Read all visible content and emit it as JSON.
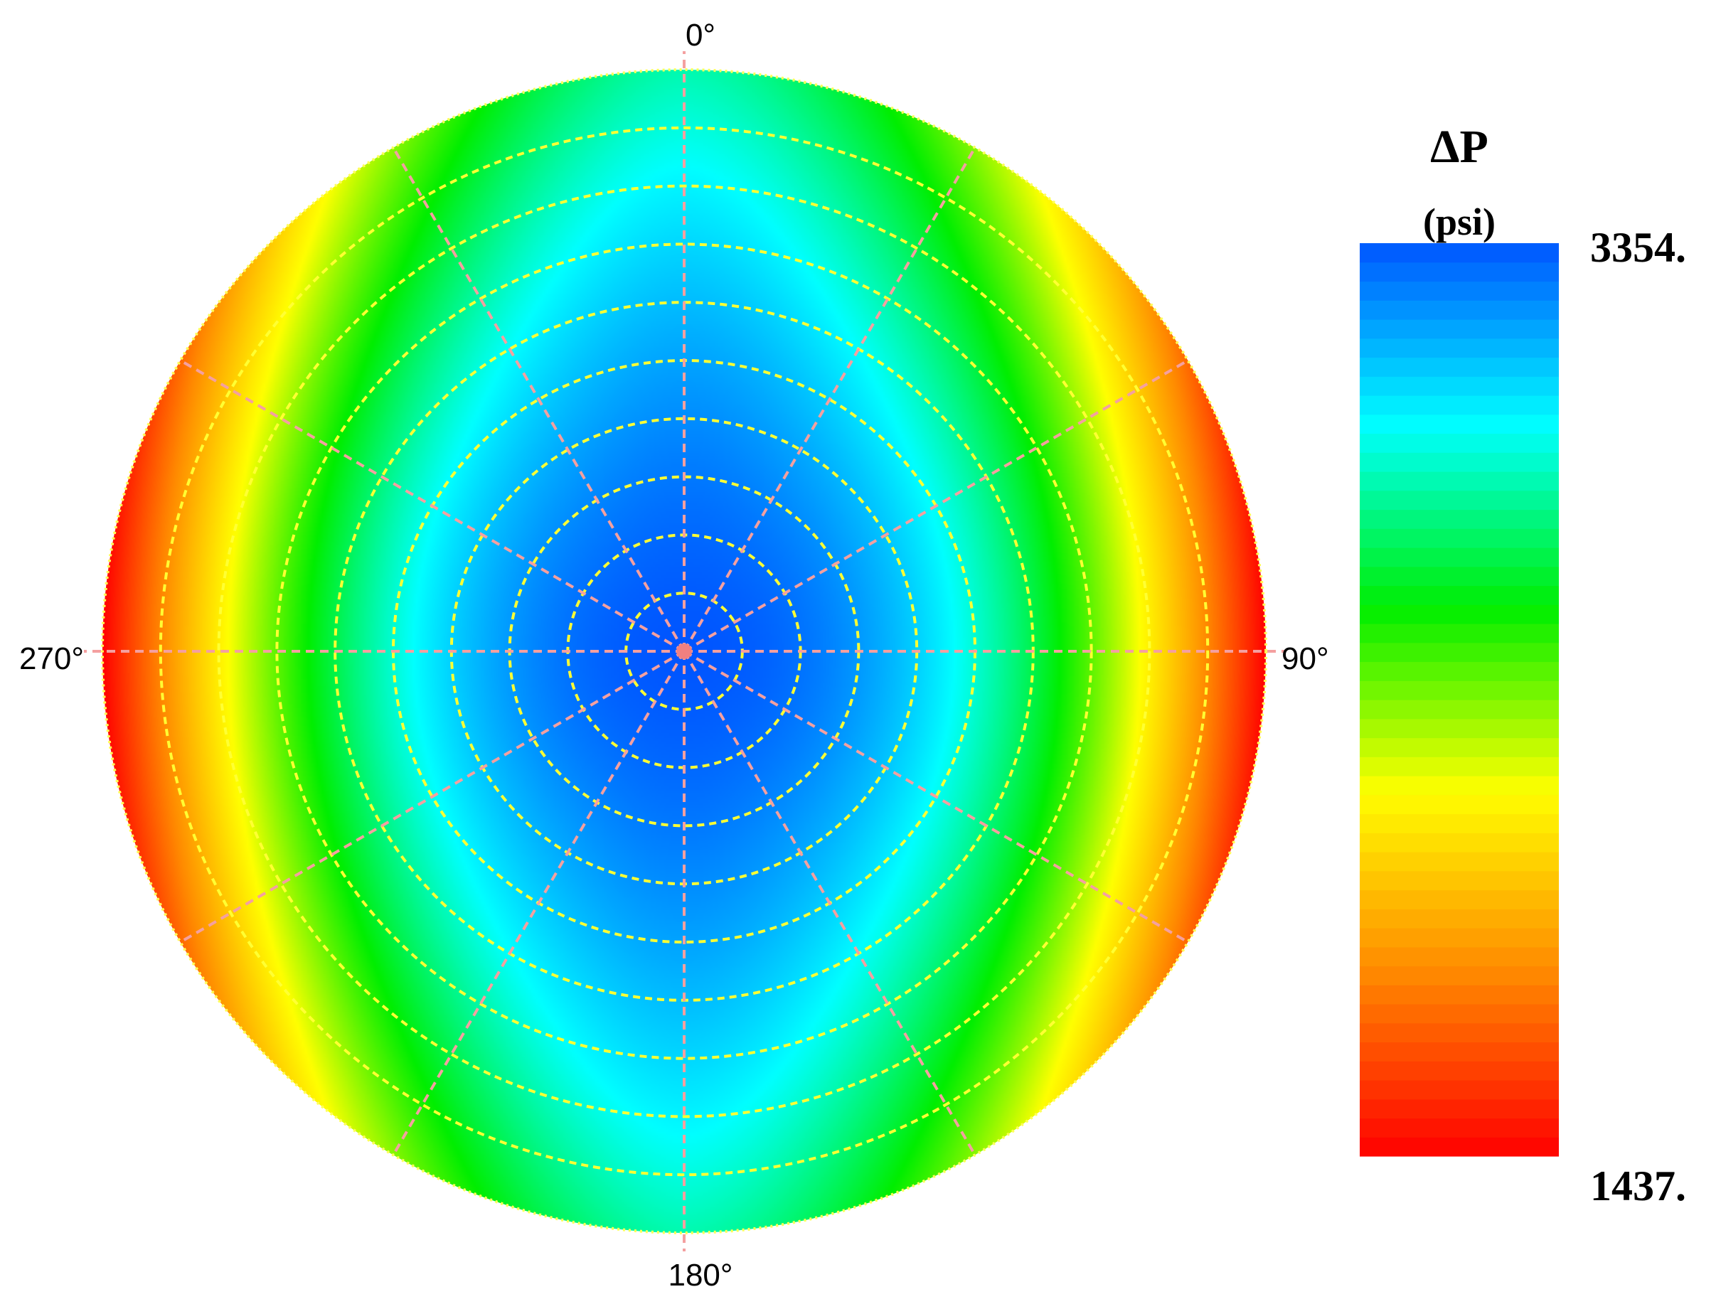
{
  "chart_data": {
    "type": "heatmap",
    "subtype": "polar contour",
    "quantity": "ΔP",
    "unit": "(psi)",
    "colorbar": {
      "max_label": "3354.",
      "min_label": "1437.",
      "range": [
        1437,
        3354
      ],
      "colormap": [
        "#ff0000",
        "#ff8800",
        "#ffff00",
        "#00ee00",
        "#00ffff",
        "#0055ff"
      ]
    },
    "angular_ticks": [
      {
        "label": "0°",
        "angle": 0
      },
      {
        "label": "90°",
        "angle": 90
      },
      {
        "label": "180°",
        "angle": 180
      },
      {
        "label": "270°",
        "angle": 270
      }
    ],
    "radial_spokes_deg": [
      0,
      30,
      60,
      90,
      120,
      150,
      180,
      210,
      240,
      270,
      300,
      330
    ],
    "radial_rings": 9,
    "pattern": {
      "description_values": "max at center, min at 90° and 270° rim",
      "center_value": 3354,
      "rim_min_value": 1437,
      "rim_at_0_and_180_value": 2850
    },
    "grid": true,
    "legend_position": "right"
  },
  "colors": {
    "spokes": "#f4a0a0",
    "rings": "#ffff33",
    "center_dot": "#f08080"
  }
}
